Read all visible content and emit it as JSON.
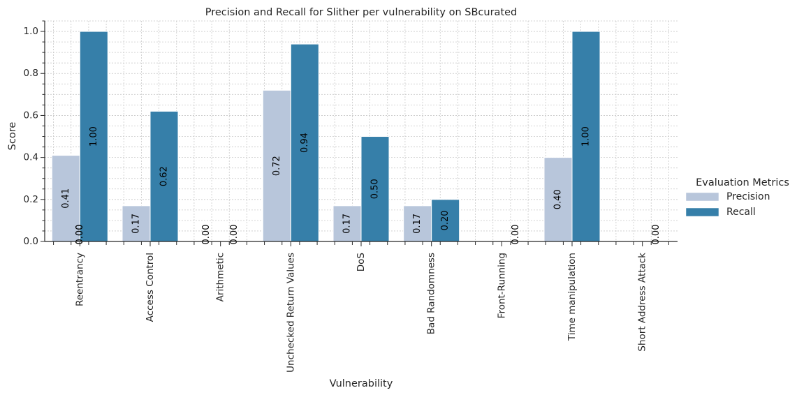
{
  "chart_data": {
    "type": "bar",
    "title": "Precision and Recall for Slither per vulnerability on SBcurated",
    "xlabel": "Vulnerability",
    "ylabel": "Score",
    "ylim": [
      0,
      1.05
    ],
    "yticks": [
      "0.0",
      "0.2",
      "0.4",
      "0.6",
      "0.8",
      "1.0"
    ],
    "grid": true,
    "legend_position": "right",
    "legend_title": "Evaluation Metrics",
    "categories": [
      "Reentrancy",
      "Access Control",
      "Arithmetic",
      "Unchecked Return Values",
      "DoS",
      "Bad Randomness",
      "Front-Running",
      "Time manipulation",
      "Short Address Attack"
    ],
    "series": [
      {
        "name": "Precision",
        "color": "#b8c6db",
        "values": [
          0.41,
          0.17,
          0,
          0.72,
          0.17,
          0.17,
          null,
          0.4,
          null
        ],
        "labels": [
          "0.41",
          "0.17",
          "0.00",
          "0.72",
          "0.17",
          "0.17",
          "",
          "0.40",
          ""
        ]
      },
      {
        "name": "Recall",
        "color": "#367fa9",
        "values": [
          1.0,
          0.62,
          0,
          0.94,
          0.5,
          0.2,
          0,
          1.0,
          0
        ],
        "labels": [
          "1.00",
          "0.62",
          "0.00",
          "0.94",
          "0.50",
          "0.20",
          "0.00",
          "1.00",
          "0.00"
        ]
      }
    ],
    "extra_labels": [
      {
        "category": "Reentrancy",
        "text": "0.00"
      },
      {
        "category": "Reentrancy",
        "text": "0.00"
      }
    ]
  }
}
